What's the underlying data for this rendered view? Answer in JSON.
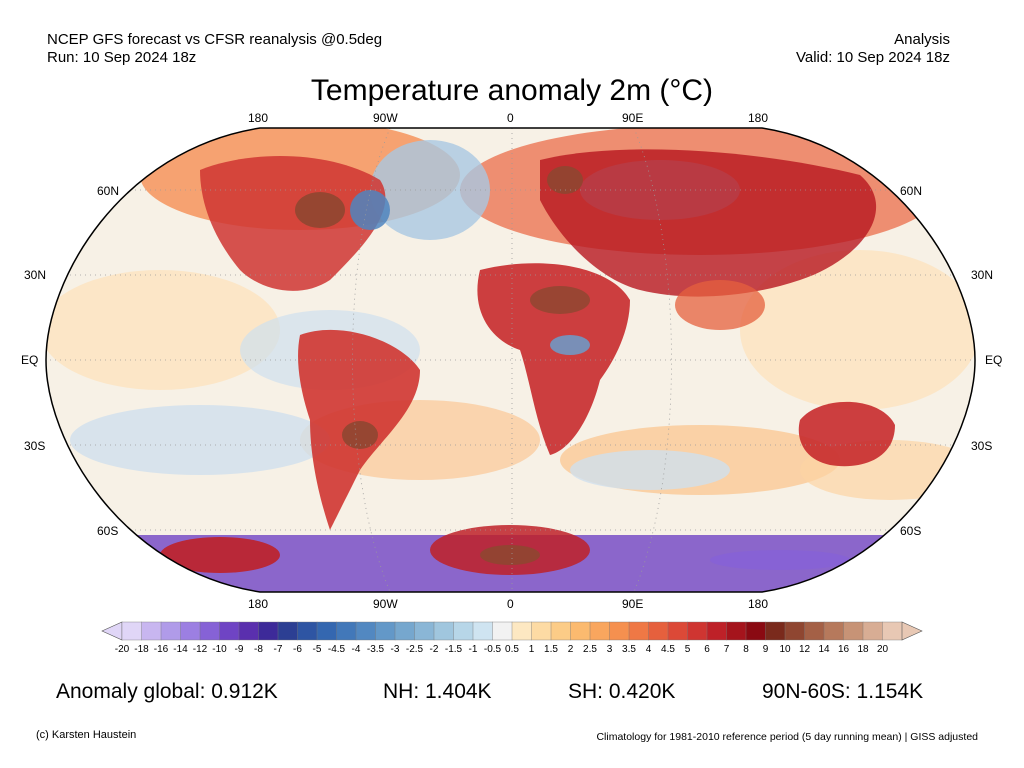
{
  "header": {
    "line1_left": "NCEP GFS forecast vs CFSR reanalysis @0.5deg",
    "line2_left": "Run: 10 Sep 2024 18z",
    "line1_right": "Analysis",
    "line2_right": "Valid: 10 Sep 2024 18z"
  },
  "title": "Temperature anomaly 2m (°C)",
  "map": {
    "lon_labels_top": [
      "180",
      "90W",
      "0",
      "90E",
      "180"
    ],
    "lon_labels_bottom": [
      "180",
      "90W",
      "0",
      "90E",
      "180"
    ],
    "lat_labels_left": [
      "60N",
      "30N",
      "EQ",
      "30S",
      "60S"
    ],
    "lat_labels_right": [
      "60N",
      "30N",
      "EQ",
      "30S",
      "60S"
    ]
  },
  "colorbar": {
    "labels": [
      "-20",
      "-18",
      "-16",
      "-14",
      "-12",
      "-10",
      "-9",
      "-8",
      "-7",
      "-6",
      "-5",
      "-4.5",
      "-4",
      "-3.5",
      "-3",
      "-2.5",
      "-2",
      "-1.5",
      "-1",
      "-0.5",
      "0.5",
      "1",
      "1.5",
      "2",
      "2.5",
      "3",
      "3.5",
      "4",
      "4.5",
      "5",
      "6",
      "7",
      "8",
      "9",
      "10",
      "12",
      "14",
      "16",
      "18",
      "20"
    ],
    "colors": [
      "#e0d6f7",
      "#c8b6f0",
      "#b09be9",
      "#9c7fe2",
      "#8662d6",
      "#6f44c4",
      "#5a2fae",
      "#3d2a99",
      "#2c3f93",
      "#2e55a3",
      "#3467b0",
      "#4278b9",
      "#5288c1",
      "#6398c8",
      "#76a7ce",
      "#8ab6d6",
      "#a0c6de",
      "#b7d6e8",
      "#cfe4f1",
      "#f2f2f2",
      "#fde8c2",
      "#fddba4",
      "#fccc87",
      "#fbba6f",
      "#f9a65e",
      "#f5904f",
      "#ef7845",
      "#e6603d",
      "#dc4937",
      "#cf3531",
      "#be2128",
      "#a5141c",
      "#8a0a12",
      "#7a2a1c",
      "#8f4631",
      "#a46046",
      "#b6795c",
      "#c79376",
      "#d8ad94",
      "#e8c8b4"
    ]
  },
  "stats": {
    "global": "Anomaly global: 0.912K",
    "nh": "NH: 1.404K",
    "sh": "SH: 0.420K",
    "arctic": "90N-60S: 1.154K"
  },
  "footer": {
    "credit": "(c) Karsten Haustein",
    "note": "Climatology for 1981-2010 reference period (5 day running mean) | GISS adjusted"
  }
}
